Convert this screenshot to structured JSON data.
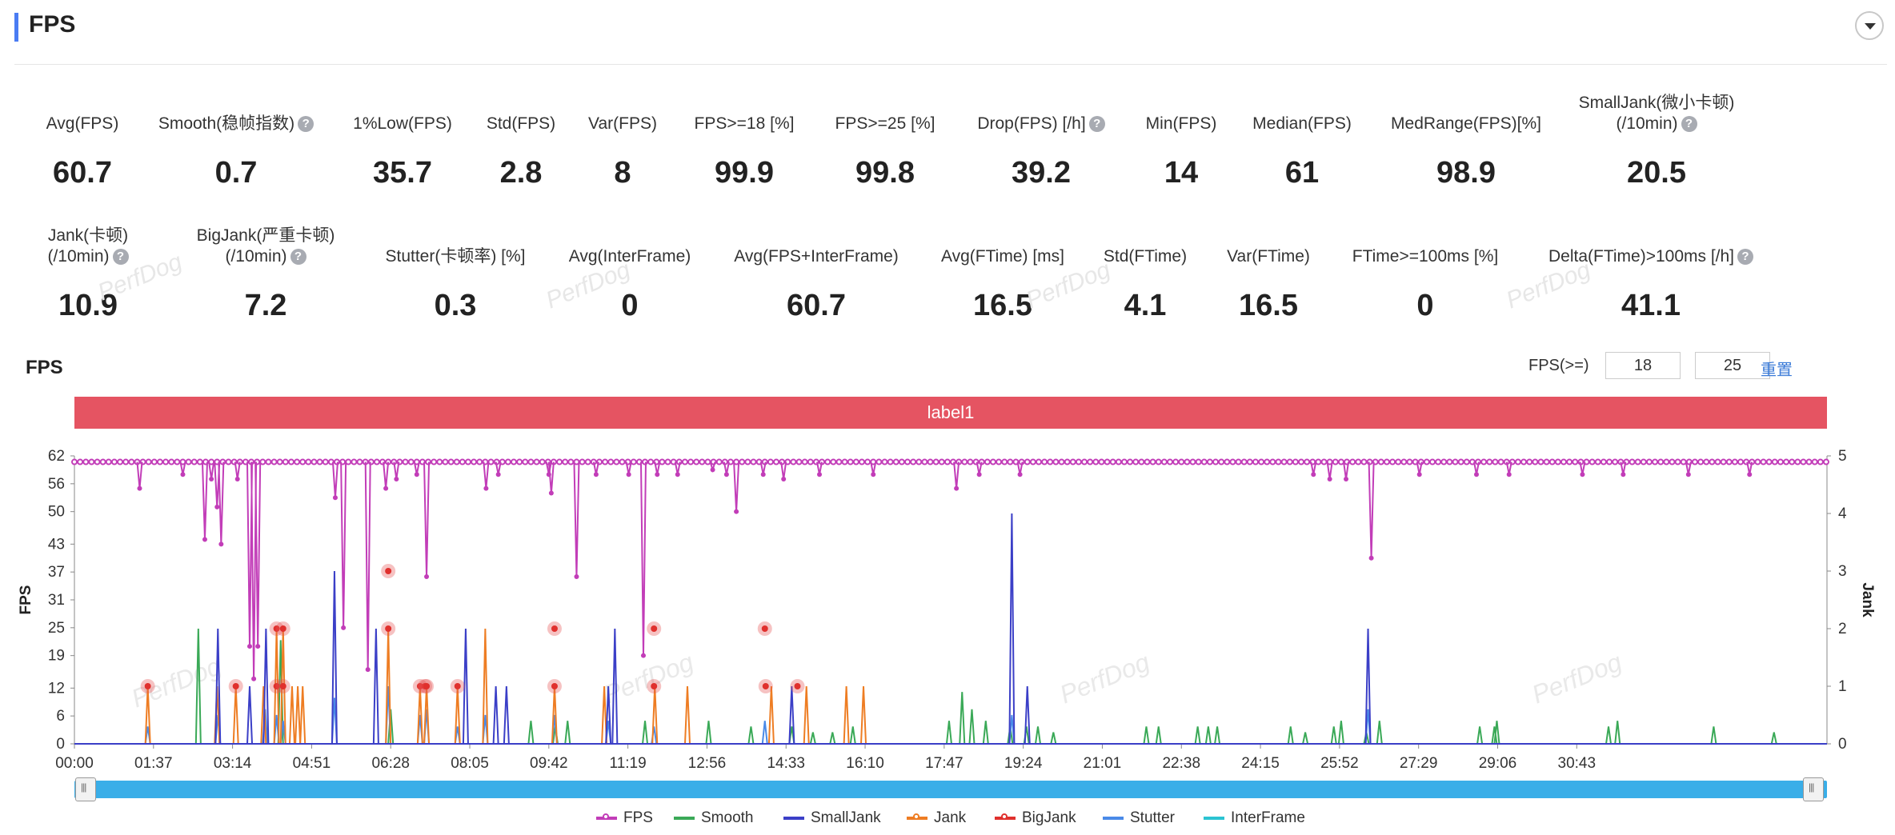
{
  "header": {
    "title": "FPS"
  },
  "metrics_row1": [
    {
      "label": "Avg(FPS)",
      "value": "60.7",
      "help": false
    },
    {
      "label": "Smooth(稳帧指数)",
      "value": "0.7",
      "help": true
    },
    {
      "label": "1%Low(FPS)",
      "value": "35.7",
      "help": false
    },
    {
      "label": "Std(FPS)",
      "value": "2.8",
      "help": false
    },
    {
      "label": "Var(FPS)",
      "value": "8",
      "help": false
    },
    {
      "label": "FPS>=18 [%]",
      "value": "99.9",
      "help": false
    },
    {
      "label": "FPS>=25 [%]",
      "value": "99.8",
      "help": false
    },
    {
      "label": "Drop(FPS) [/h]",
      "value": "39.2",
      "help": true
    },
    {
      "label": "Min(FPS)",
      "value": "14",
      "help": false
    },
    {
      "label": "Median(FPS)",
      "value": "61",
      "help": false
    },
    {
      "label": "MedRange(FPS)[%]",
      "value": "98.9",
      "help": false
    },
    {
      "label": "SmallJank(微小卡顿)",
      "label2": "(/10min)",
      "value": "20.5",
      "help": true
    }
  ],
  "metrics_row2": [
    {
      "label": "Jank(卡顿)",
      "label2": "(/10min)",
      "value": "10.9",
      "help": true
    },
    {
      "label": "BigJank(严重卡顿)",
      "label2": "(/10min)",
      "value": "7.2",
      "help": true
    },
    {
      "label": "Stutter(卡顿率) [%]",
      "value": "0.3",
      "help": false
    },
    {
      "label": "Avg(InterFrame)",
      "value": "0",
      "help": false
    },
    {
      "label": "Avg(FPS+InterFrame)",
      "value": "60.7",
      "help": false
    },
    {
      "label": "Avg(FTime) [ms]",
      "value": "16.5",
      "help": false
    },
    {
      "label": "Std(FTime)",
      "value": "4.1",
      "help": false
    },
    {
      "label": "Var(FTime)",
      "value": "16.5",
      "help": false
    },
    {
      "label": "FTime>=100ms [%]",
      "value": "0",
      "help": false
    },
    {
      "label": "Delta(FTime)>100ms [/h]",
      "value": "41.1",
      "help": true
    }
  ],
  "watermark": "PerfDog",
  "help_glyph": "?",
  "chart_section": {
    "title": "FPS",
    "threshold_label": "FPS(>=)",
    "threshold_low": "18",
    "threshold_high": "25",
    "reset_label": "重置",
    "label_bar": "label1"
  },
  "chart_data": {
    "type": "line",
    "ylabel": "FPS",
    "y2label": "Jank",
    "y_ticks": [
      0,
      6,
      12,
      19,
      25,
      31,
      37,
      43,
      50,
      56,
      62
    ],
    "y2_ticks": [
      0,
      1,
      2,
      3,
      4,
      5
    ],
    "ylim": [
      0,
      62
    ],
    "y2lim": [
      0,
      5
    ],
    "x_ticks": [
      "00:00",
      "01:37",
      "03:14",
      "04:51",
      "06:28",
      "08:05",
      "09:42",
      "11:19",
      "12:56",
      "14:33",
      "16:10",
      "17:47",
      "19:24",
      "21:01",
      "22:38",
      "24:15",
      "25:52",
      "27:29",
      "29:06",
      "30:43"
    ],
    "x_range_seconds": [
      0,
      2150
    ],
    "fps_baseline": 60.7,
    "series": [
      {
        "name": "FPS",
        "color": "#c23db8",
        "dips": [
          [
            80,
            55
          ],
          [
            133,
            58
          ],
          [
            160,
            44
          ],
          [
            168,
            57
          ],
          [
            175,
            51
          ],
          [
            180,
            43
          ],
          [
            200,
            57
          ],
          [
            215,
            21
          ],
          [
            220,
            14
          ],
          [
            225,
            21
          ],
          [
            320,
            53
          ],
          [
            330,
            25
          ],
          [
            360,
            16
          ],
          [
            382,
            55
          ],
          [
            395,
            57
          ],
          [
            420,
            58
          ],
          [
            432,
            36
          ],
          [
            505,
            55
          ],
          [
            520,
            58
          ],
          [
            582,
            58
          ],
          [
            585,
            54
          ],
          [
            616,
            36
          ],
          [
            640,
            58
          ],
          [
            680,
            58
          ],
          [
            698,
            19
          ],
          [
            715,
            58
          ],
          [
            740,
            58
          ],
          [
            783,
            59
          ],
          [
            800,
            58
          ],
          [
            812,
            50
          ],
          [
            845,
            58
          ],
          [
            870,
            57
          ],
          [
            914,
            58
          ],
          [
            980,
            58
          ],
          [
            1082,
            55
          ],
          [
            1110,
            58
          ],
          [
            1160,
            58
          ],
          [
            1520,
            58
          ],
          [
            1540,
            57
          ],
          [
            1560,
            57
          ],
          [
            1591,
            40
          ],
          [
            1650,
            58
          ],
          [
            1720,
            58
          ],
          [
            1760,
            58
          ],
          [
            1850,
            58
          ],
          [
            1900,
            58
          ],
          [
            1980,
            58
          ],
          [
            2055,
            58
          ]
        ]
      },
      {
        "name": "Smooth",
        "color": "#3aa957",
        "spikes": [
          [
            152,
            2
          ],
          [
            253,
            1.8
          ],
          [
            388,
            0.6
          ],
          [
            560,
            0.4
          ],
          [
            590,
            0.3
          ],
          [
            605,
            0.4
          ],
          [
            700,
            0.4
          ],
          [
            778,
            0.4
          ],
          [
            830,
            0.3
          ],
          [
            880,
            0.3
          ],
          [
            906,
            0.2
          ],
          [
            930,
            0.2
          ],
          [
            955,
            0.3
          ],
          [
            1073,
            0.4
          ],
          [
            1089,
            0.9
          ],
          [
            1101,
            0.6
          ],
          [
            1118,
            0.4
          ],
          [
            1148,
            0.3
          ],
          [
            1168,
            0.3
          ],
          [
            1182,
            0.3
          ],
          [
            1201,
            0.2
          ],
          [
            1315,
            0.3
          ],
          [
            1330,
            0.3
          ],
          [
            1378,
            0.3
          ],
          [
            1391,
            0.3
          ],
          [
            1402,
            0.3
          ],
          [
            1492,
            0.3
          ],
          [
            1510,
            0.2
          ],
          [
            1545,
            0.3
          ],
          [
            1554,
            0.4
          ],
          [
            1585,
            0.2
          ],
          [
            1601,
            0.4
          ],
          [
            1724,
            0.3
          ],
          [
            1742,
            0.3
          ],
          [
            1745,
            0.4
          ],
          [
            1882,
            0.3
          ],
          [
            1893,
            0.4
          ],
          [
            2011,
            0.3
          ],
          [
            2085,
            0.2
          ]
        ]
      },
      {
        "name": "SmallJank",
        "color": "#3b3fc7",
        "spikes": [
          [
            176,
            2
          ],
          [
            215,
            1
          ],
          [
            235,
            2
          ],
          [
            319,
            3
          ],
          [
            370,
            2
          ],
          [
            480,
            2
          ],
          [
            517,
            1
          ],
          [
            530,
            1
          ],
          [
            655,
            1
          ],
          [
            663,
            2
          ],
          [
            880,
            1
          ],
          [
            1150,
            4
          ],
          [
            1169,
            1
          ],
          [
            1587,
            2
          ]
        ]
      },
      {
        "name": "Jank",
        "color": "#ee7d23",
        "spikes": [
          [
            90,
            1
          ],
          [
            175,
            1
          ],
          [
            198,
            1
          ],
          [
            232,
            1
          ],
          [
            248,
            2
          ],
          [
            256,
            2
          ],
          [
            267,
            1
          ],
          [
            274,
            1
          ],
          [
            280,
            1
          ],
          [
            385,
            2
          ],
          [
            424,
            1
          ],
          [
            432,
            1
          ],
          [
            470,
            1
          ],
          [
            504,
            2
          ],
          [
            589,
            1
          ],
          [
            650,
            1
          ],
          [
            712,
            1
          ],
          [
            752,
            1
          ],
          [
            855,
            1
          ],
          [
            898,
            1
          ],
          [
            947,
            1
          ],
          [
            968,
            1
          ]
        ]
      },
      {
        "name": "BigJank",
        "color": "#e0302d",
        "points": [
          [
            90,
            1
          ],
          [
            198,
            1
          ],
          [
            248,
            2
          ],
          [
            256,
            2
          ],
          [
            248,
            1
          ],
          [
            256,
            1
          ],
          [
            385,
            3
          ],
          [
            385,
            2
          ],
          [
            424,
            1
          ],
          [
            430,
            1
          ],
          [
            432,
            1
          ],
          [
            470,
            1
          ],
          [
            589,
            2
          ],
          [
            589,
            1
          ],
          [
            711,
            2
          ],
          [
            711,
            1
          ],
          [
            847,
            2
          ],
          [
            848,
            1
          ],
          [
            887,
            1
          ]
        ]
      },
      {
        "name": "Stutter",
        "color": "#4a8ae8",
        "spikes": [
          [
            90,
            0.3
          ],
          [
            176,
            0.5
          ],
          [
            234,
            0.6
          ],
          [
            248,
            0.5
          ],
          [
            256,
            0.4
          ],
          [
            319,
            0.8
          ],
          [
            385,
            1
          ],
          [
            424,
            0.5
          ],
          [
            432,
            0.6
          ],
          [
            470,
            0.3
          ],
          [
            504,
            0.5
          ],
          [
            589,
            0.5
          ],
          [
            655,
            0.4
          ],
          [
            711,
            0.3
          ],
          [
            847,
            0.4
          ],
          [
            1150,
            0.5
          ],
          [
            1587,
            0.6
          ]
        ]
      },
      {
        "name": "InterFrame",
        "color": "#2bc3d2",
        "spikes": []
      }
    ]
  }
}
